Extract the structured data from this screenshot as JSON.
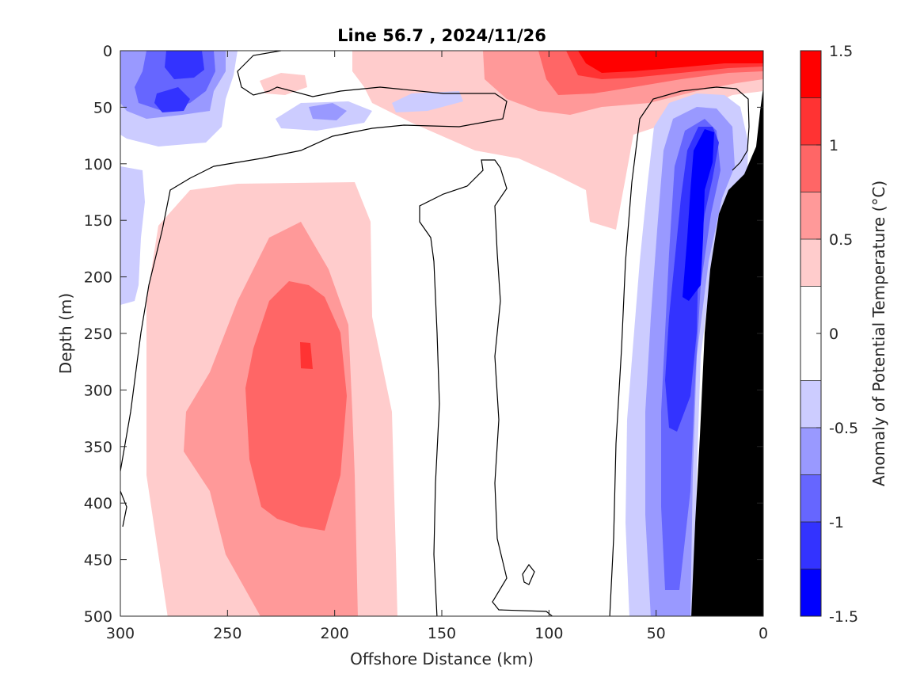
{
  "chart_data": {
    "type": "heatmap",
    "subtype": "filled-contour section",
    "title": "Line 56.7 , 2024/11/26",
    "xlabel": "Offshore Distance (km)",
    "ylabel": "Depth (m)",
    "colorbar_label": "Anomaly of Potential Temperature (°C)",
    "xlim": [
      300,
      0
    ],
    "ylim": [
      500,
      0
    ],
    "x_reversed": true,
    "y_reversed": true,
    "x_ticks": [
      "300",
      "250",
      "200",
      "150",
      "100",
      "50",
      "0"
    ],
    "y_ticks": [
      "0",
      "50",
      "100",
      "150",
      "200",
      "250",
      "300",
      "350",
      "400",
      "450",
      "500"
    ],
    "colorbar_ticks": [
      "1.5",
      "1",
      "0.5",
      "0",
      "-0.5",
      "-1",
      "-1.5"
    ],
    "contour_levels": [
      -1.5,
      -1.25,
      -1.0,
      -0.75,
      -0.5,
      -0.25,
      0.25,
      0.5,
      0.75,
      1.0,
      1.25,
      1.5
    ],
    "colorbar_classes": [
      {
        "range": [
          1.25,
          1.5
        ],
        "color": "#ff0000"
      },
      {
        "range": [
          1.0,
          1.25
        ],
        "color": "#ff3333"
      },
      {
        "range": [
          0.75,
          1.0
        ],
        "color": "#ff6666"
      },
      {
        "range": [
          0.5,
          0.75
        ],
        "color": "#ff9999"
      },
      {
        "range": [
          0.25,
          0.5
        ],
        "color": "#ffcccc"
      },
      {
        "range": [
          0.0,
          0.25
        ],
        "color": "#ffffff"
      },
      {
        "range": [
          -0.25,
          0.0
        ],
        "color": "#ffffff"
      },
      {
        "range": [
          -0.5,
          -0.25
        ],
        "color": "#ccccff"
      },
      {
        "range": [
          -0.75,
          -0.5
        ],
        "color": "#9999ff"
      },
      {
        "range": [
          -1.0,
          -0.75
        ],
        "color": "#6666ff"
      },
      {
        "range": [
          -1.25,
          -1.0
        ],
        "color": "#3333ff"
      },
      {
        "range": [
          -1.5,
          -1.25
        ],
        "color": "#0000ff"
      }
    ],
    "seafloor_color": "#000000",
    "features": [
      {
        "name": "warm anomaly core",
        "x_range": [
          280,
          160
        ],
        "depth_range": [
          110,
          500
        ],
        "max_value": 1.25,
        "max_at": {
          "x": 213,
          "depth": 275
        }
      },
      {
        "name": "surface warm anomaly near coast",
        "x_range": [
          90,
          0
        ],
        "depth_range": [
          0,
          60
        ],
        "max_value": 1.5
      },
      {
        "name": "coastal cold anomaly",
        "x_range": [
          60,
          20
        ],
        "depth_range": [
          40,
          500
        ],
        "min_value": -1.25
      },
      {
        "name": "surface cold anomaly offshore",
        "x_range": [
          300,
          220
        ],
        "depth_range": [
          0,
          85
        ],
        "min_value": -1.25
      },
      {
        "name": "seafloor / shelf",
        "x_range": [
          33,
          0
        ],
        "depth_range": [
          35,
          500
        ]
      }
    ]
  }
}
